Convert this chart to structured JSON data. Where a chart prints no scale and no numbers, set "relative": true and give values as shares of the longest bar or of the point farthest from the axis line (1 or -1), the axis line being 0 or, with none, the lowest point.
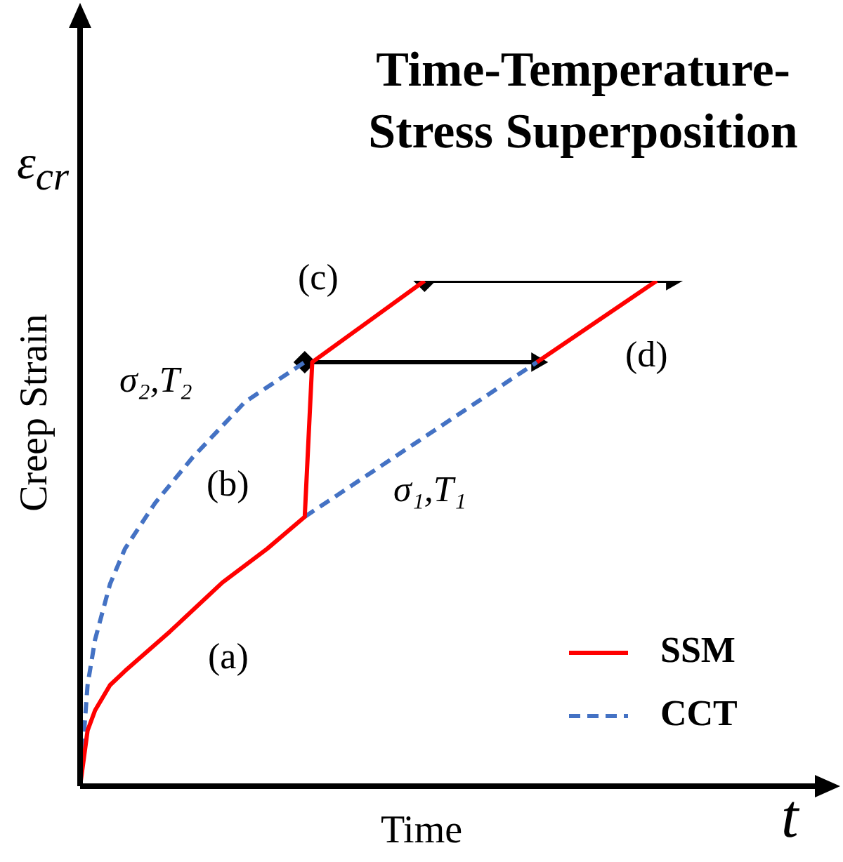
{
  "chart_data": {
    "type": "line",
    "title": "Time-Temperature-Stress Superposition",
    "xlabel": "Time",
    "ylabel": "Creep Strain",
    "relative": true,
    "legend": "bottom right",
    "categories": [
      null,
      null,
      null,
      null,
      null,
      null,
      null,
      null,
      null,
      null,
      null,
      null,
      null,
      null,
      null,
      null,
      null,
      null,
      null,
      null,
      null,
      null,
      null,
      null,
      null,
      null,
      null,
      null,
      null,
      null,
      null,
      null,
      null,
      null,
      null,
      null,
      null,
      null,
      null,
      null,
      null,
      null,
      null,
      null,
      null,
      null,
      null,
      null,
      null,
      null,
      null,
      null,
      null,
      null,
      null,
      null,
      null,
      null,
      null,
      null,
      null,
      null,
      null,
      null,
      null,
      null,
      null,
      null,
      null,
      null,
      null,
      null,
      null,
      null,
      null,
      null,
      null,
      null,
      null,
      null,
      null,
      null,
      null,
      null,
      null,
      null,
      null,
      null,
      null,
      null,
      null,
      null,
      null,
      null,
      null,
      null,
      null,
      null,
      null,
      null,
      null
    ],
    "series": [
      {
        "name": "SSM",
        "color": "#ff0000",
        "line_style": "solid",
        "values": [
          0,
          0.11,
          0.15,
          null,
          0.2,
          null,
          0.228,
          null,
          null,
          null,
          null,
          null,
          0.306,
          null,
          null,
          null,
          null,
          null,
          null,
          0.403,
          null,
          null,
          null,
          null,
          null,
          0.47,
          null,
          null,
          null,
          null,
          0.533,
          0.839,
          null,
          null,
          null,
          null,
          null,
          null,
          null,
          null,
          null,
          null,
          null,
          null,
          null,
          null,
          1,
          null,
          null,
          null,
          null,
          null,
          null,
          null,
          null,
          null,
          null,
          null,
          null,
          null,
          null,
          null,
          null,
          null,
          null,
          null,
          null,
          null,
          null,
          null,
          null,
          null,
          null,
          null,
          null,
          null,
          null,
          null,
          null,
          null,
          null,
          null,
          null,
          null,
          null,
          null,
          null,
          null,
          null,
          null,
          null,
          null,
          null,
          null,
          null,
          null,
          null,
          null,
          null,
          null,
          null
        ]
      },
      {
        "name": "CCT",
        "color": "#4472c4",
        "line_style": "dashed",
        "values": [
          0,
          0.2,
          0.29,
          null,
          0.4,
          null,
          0.47,
          null,
          null,
          null,
          0.56,
          null,
          null,
          null,
          null,
          0.65,
          null,
          null,
          null,
          null,
          null,
          null,
          0.76,
          null,
          null,
          null,
          null,
          null,
          null,
          null,
          0.839,
          null,
          null,
          null,
          null,
          null,
          null,
          null,
          null,
          null,
          null,
          null,
          null,
          null,
          null,
          null,
          null,
          null,
          null,
          null,
          null,
          null,
          null,
          null,
          null,
          null,
          null,
          null,
          null,
          null,
          null,
          null,
          null,
          null,
          null,
          null,
          null,
          null,
          null,
          null,
          null,
          null,
          null,
          null,
          null,
          null,
          null,
          null,
          null,
          null,
          null,
          null,
          null,
          null,
          null,
          null,
          null,
          null,
          null,
          null,
          null,
          null,
          null,
          null,
          null,
          null,
          null,
          null,
          null,
          null,
          null
        ]
      },
      {
        "color": "#4472c4",
        "line_style": "dashed",
        "values": [
          null,
          null,
          null,
          null,
          null,
          null,
          null,
          null,
          null,
          null,
          null,
          null,
          null,
          null,
          null,
          null,
          null,
          null,
          null,
          null,
          null,
          null,
          null,
          null,
          null,
          null,
          null,
          null,
          null,
          null,
          0.533,
          null,
          null,
          null,
          null,
          null,
          null,
          null,
          null,
          null,
          null,
          null,
          null,
          null,
          null,
          null,
          null,
          null,
          null,
          null,
          null,
          null,
          null,
          null,
          null,
          null,
          null,
          null,
          null,
          null,
          null,
          0.839,
          null,
          null,
          null,
          null,
          null,
          null,
          null,
          null,
          null,
          null,
          null,
          null,
          null,
          null,
          null,
          null,
          null,
          null,
          null,
          null,
          null,
          null,
          null,
          null,
          null,
          null,
          null,
          null,
          null,
          null,
          null,
          null,
          null,
          null,
          null,
          null,
          null,
          null,
          null
        ]
      },
      {
        "color": "#ff0000",
        "line_style": "solid",
        "values": [
          null,
          null,
          null,
          null,
          null,
          null,
          null,
          null,
          null,
          null,
          null,
          null,
          null,
          null,
          null,
          null,
          null,
          null,
          null,
          null,
          null,
          null,
          null,
          null,
          null,
          null,
          null,
          null,
          null,
          null,
          null,
          null,
          null,
          null,
          null,
          null,
          null,
          null,
          null,
          null,
          null,
          null,
          null,
          null,
          null,
          null,
          null,
          null,
          null,
          null,
          null,
          null,
          null,
          null,
          null,
          null,
          null,
          null,
          null,
          null,
          null,
          0.839,
          null,
          null,
          null,
          null,
          null,
          null,
          null,
          null,
          null,
          null,
          null,
          null,
          null,
          null,
          null,
          1,
          null,
          null,
          null,
          null,
          null,
          null,
          null,
          null,
          null,
          null,
          null,
          null,
          null,
          null,
          null,
          null,
          null,
          null,
          null,
          null,
          null,
          null,
          null
        ]
      },
      {
        "color": "#000000",
        "line_style": "solid",
        "marker": "diamond",
        "values": [
          null,
          null,
          null,
          null,
          null,
          null,
          null,
          null,
          null,
          null,
          null,
          null,
          null,
          null,
          null,
          null,
          null,
          null,
          null,
          null,
          null,
          null,
          null,
          null,
          null,
          null,
          null,
          null,
          null,
          null,
          0.839,
          null,
          null,
          null,
          null,
          null,
          null,
          null,
          null,
          null,
          null,
          null,
          null,
          null,
          null,
          null,
          null,
          null,
          null,
          null,
          null,
          null,
          null,
          null,
          null,
          null,
          null,
          null,
          null,
          null,
          null,
          0.839,
          null,
          null,
          null,
          null,
          null,
          null,
          null,
          null,
          null,
          null,
          null,
          null,
          null,
          null,
          null,
          null,
          null,
          null,
          null,
          null,
          null,
          null,
          null,
          null,
          null,
          null,
          null,
          null,
          null,
          null,
          null,
          null,
          null,
          null,
          null,
          null,
          null,
          null,
          null
        ]
      },
      {
        "color": "#000000",
        "line_style": "solid",
        "marker": "diamond",
        "values": [
          null,
          null,
          null,
          null,
          null,
          null,
          null,
          null,
          null,
          null,
          null,
          null,
          null,
          null,
          null,
          null,
          null,
          null,
          null,
          null,
          null,
          null,
          null,
          null,
          null,
          null,
          null,
          null,
          null,
          null,
          null,
          null,
          null,
          null,
          null,
          null,
          null,
          null,
          null,
          null,
          null,
          null,
          null,
          null,
          null,
          null,
          1,
          null,
          null,
          null,
          null,
          null,
          null,
          null,
          null,
          null,
          null,
          null,
          null,
          null,
          null,
          null,
          null,
          null,
          null,
          null,
          null,
          null,
          null,
          null,
          null,
          null,
          null,
          null,
          null,
          null,
          null,
          null,
          null,
          1,
          null,
          null,
          null,
          null,
          null,
          null,
          null,
          null,
          null,
          null,
          null,
          null,
          null,
          null,
          null,
          null,
          null,
          null,
          null,
          null,
          null
        ]
      }
    ],
    "annotations": [
      "ε$_{cr}$",
      "t",
      "(a)",
      "(b)",
      "(c)",
      "(d)",
      "σ₂,T₂",
      "σ₁,T₁"
    ]
  }
}
